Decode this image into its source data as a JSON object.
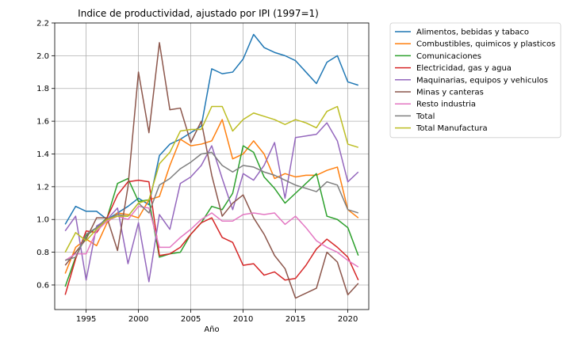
{
  "chart_data": {
    "type": "line",
    "title": "Indice de productividad, ajustado por IPI (1997=1)",
    "xlabel": "Año",
    "ylabel": "",
    "xlim": [
      1992,
      2022
    ],
    "ylim": [
      0.45,
      2.2
    ],
    "xticks": [
      1995,
      2000,
      2005,
      2010,
      2015,
      2020
    ],
    "yticks": [
      0.6,
      0.8,
      1.0,
      1.2,
      1.4,
      1.6,
      1.8,
      2.0,
      2.2
    ],
    "grid": true,
    "legend_position": "outside-top-right",
    "x": [
      1993,
      1994,
      1995,
      1996,
      1997,
      1998,
      1999,
      2000,
      2001,
      2002,
      2003,
      2004,
      2005,
      2006,
      2007,
      2008,
      2009,
      2010,
      2011,
      2012,
      2013,
      2014,
      2015,
      2016,
      2017,
      2018,
      2019,
      2020,
      2021
    ],
    "series": [
      {
        "name": "Alimentos, bebidas y tabaco",
        "color": "#1f77b4",
        "values": [
          0.97,
          1.08,
          1.05,
          1.05,
          1.0,
          1.04,
          1.08,
          1.13,
          1.09,
          1.39,
          1.46,
          1.49,
          1.53,
          1.57,
          1.92,
          1.89,
          1.9,
          1.98,
          2.13,
          2.05,
          2.02,
          2.0,
          1.97,
          1.9,
          1.83,
          1.96,
          2.0,
          1.84,
          1.82
        ]
      },
      {
        "name": "Combustibles, quimicos y plasticos",
        "color": "#ff7f0e",
        "values": [
          0.67,
          0.83,
          0.88,
          0.84,
          0.98,
          1.04,
          1.03,
          1.01,
          1.12,
          1.14,
          1.33,
          1.49,
          1.45,
          1.46,
          1.48,
          1.61,
          1.37,
          1.4,
          1.48,
          1.4,
          1.25,
          1.28,
          1.26,
          1.27,
          1.27,
          1.3,
          1.32,
          1.06,
          1.01
        ]
      },
      {
        "name": "Comunicaciones",
        "color": "#2ca02c",
        "values": [
          0.59,
          0.77,
          0.9,
          0.95,
          1.01,
          1.22,
          1.25,
          1.11,
          1.12,
          0.77,
          0.79,
          0.8,
          0.91,
          0.98,
          1.08,
          1.06,
          1.16,
          1.45,
          1.41,
          1.26,
          1.19,
          1.1,
          1.16,
          1.22,
          1.28,
          1.02,
          1.0,
          0.95,
          0.78
        ]
      },
      {
        "name": "Electricidad, gas y agua",
        "color": "#d62728",
        "values": [
          0.54,
          0.76,
          0.93,
          0.92,
          1.01,
          1.15,
          1.23,
          1.24,
          1.23,
          0.78,
          0.79,
          0.83,
          0.91,
          0.98,
          1.01,
          0.89,
          0.86,
          0.72,
          0.73,
          0.66,
          0.68,
          0.63,
          0.64,
          0.72,
          0.82,
          0.88,
          0.83,
          0.77,
          0.63
        ]
      },
      {
        "name": "Maquinarias, equipos y vehiculos",
        "color": "#9467bd",
        "values": [
          0.93,
          1.02,
          0.63,
          0.96,
          1.0,
          1.07,
          0.73,
          0.98,
          0.62,
          1.03,
          0.94,
          1.22,
          1.26,
          1.33,
          1.45,
          1.25,
          1.06,
          1.28,
          1.24,
          1.33,
          1.47,
          1.13,
          1.5,
          1.51,
          1.52,
          1.59,
          1.48,
          1.23,
          1.29
        ]
      },
      {
        "name": "Minas y canteras",
        "color": "#8c564b",
        "values": [
          0.72,
          0.8,
          0.88,
          1.01,
          1.01,
          0.81,
          1.2,
          1.9,
          1.53,
          2.08,
          1.67,
          1.68,
          1.47,
          1.6,
          1.27,
          1.02,
          1.1,
          1.15,
          1.01,
          0.91,
          0.78,
          0.7,
          0.52,
          0.55,
          0.58,
          0.8,
          0.74,
          0.54,
          0.61
        ]
      },
      {
        "name": "Resto industria",
        "color": "#e377c2",
        "values": [
          0.75,
          0.79,
          0.79,
          0.93,
          0.99,
          1.02,
          1.0,
          1.08,
          1.07,
          0.83,
          0.83,
          0.89,
          0.94,
          1.0,
          1.04,
          0.99,
          0.99,
          1.03,
          1.04,
          1.03,
          1.04,
          0.97,
          1.02,
          0.95,
          0.87,
          0.83,
          0.8,
          0.75,
          0.71
        ]
      },
      {
        "name": "Total",
        "color": "#7f7f7f",
        "values": [
          0.75,
          0.77,
          0.91,
          0.95,
          1.0,
          1.03,
          1.02,
          1.1,
          1.04,
          1.21,
          1.25,
          1.31,
          1.35,
          1.4,
          1.41,
          1.33,
          1.29,
          1.33,
          1.32,
          1.29,
          1.27,
          1.24,
          1.21,
          1.19,
          1.17,
          1.23,
          1.21,
          1.06,
          1.04
        ]
      },
      {
        "name": "Total Manufactura",
        "color": "#bcbd22",
        "values": [
          0.8,
          0.92,
          0.87,
          0.94,
          1.0,
          1.02,
          1.02,
          1.1,
          1.12,
          1.34,
          1.41,
          1.54,
          1.55,
          1.55,
          1.69,
          1.69,
          1.54,
          1.61,
          1.65,
          1.63,
          1.61,
          1.58,
          1.61,
          1.59,
          1.56,
          1.66,
          1.69,
          1.46,
          1.44
        ]
      }
    ]
  }
}
